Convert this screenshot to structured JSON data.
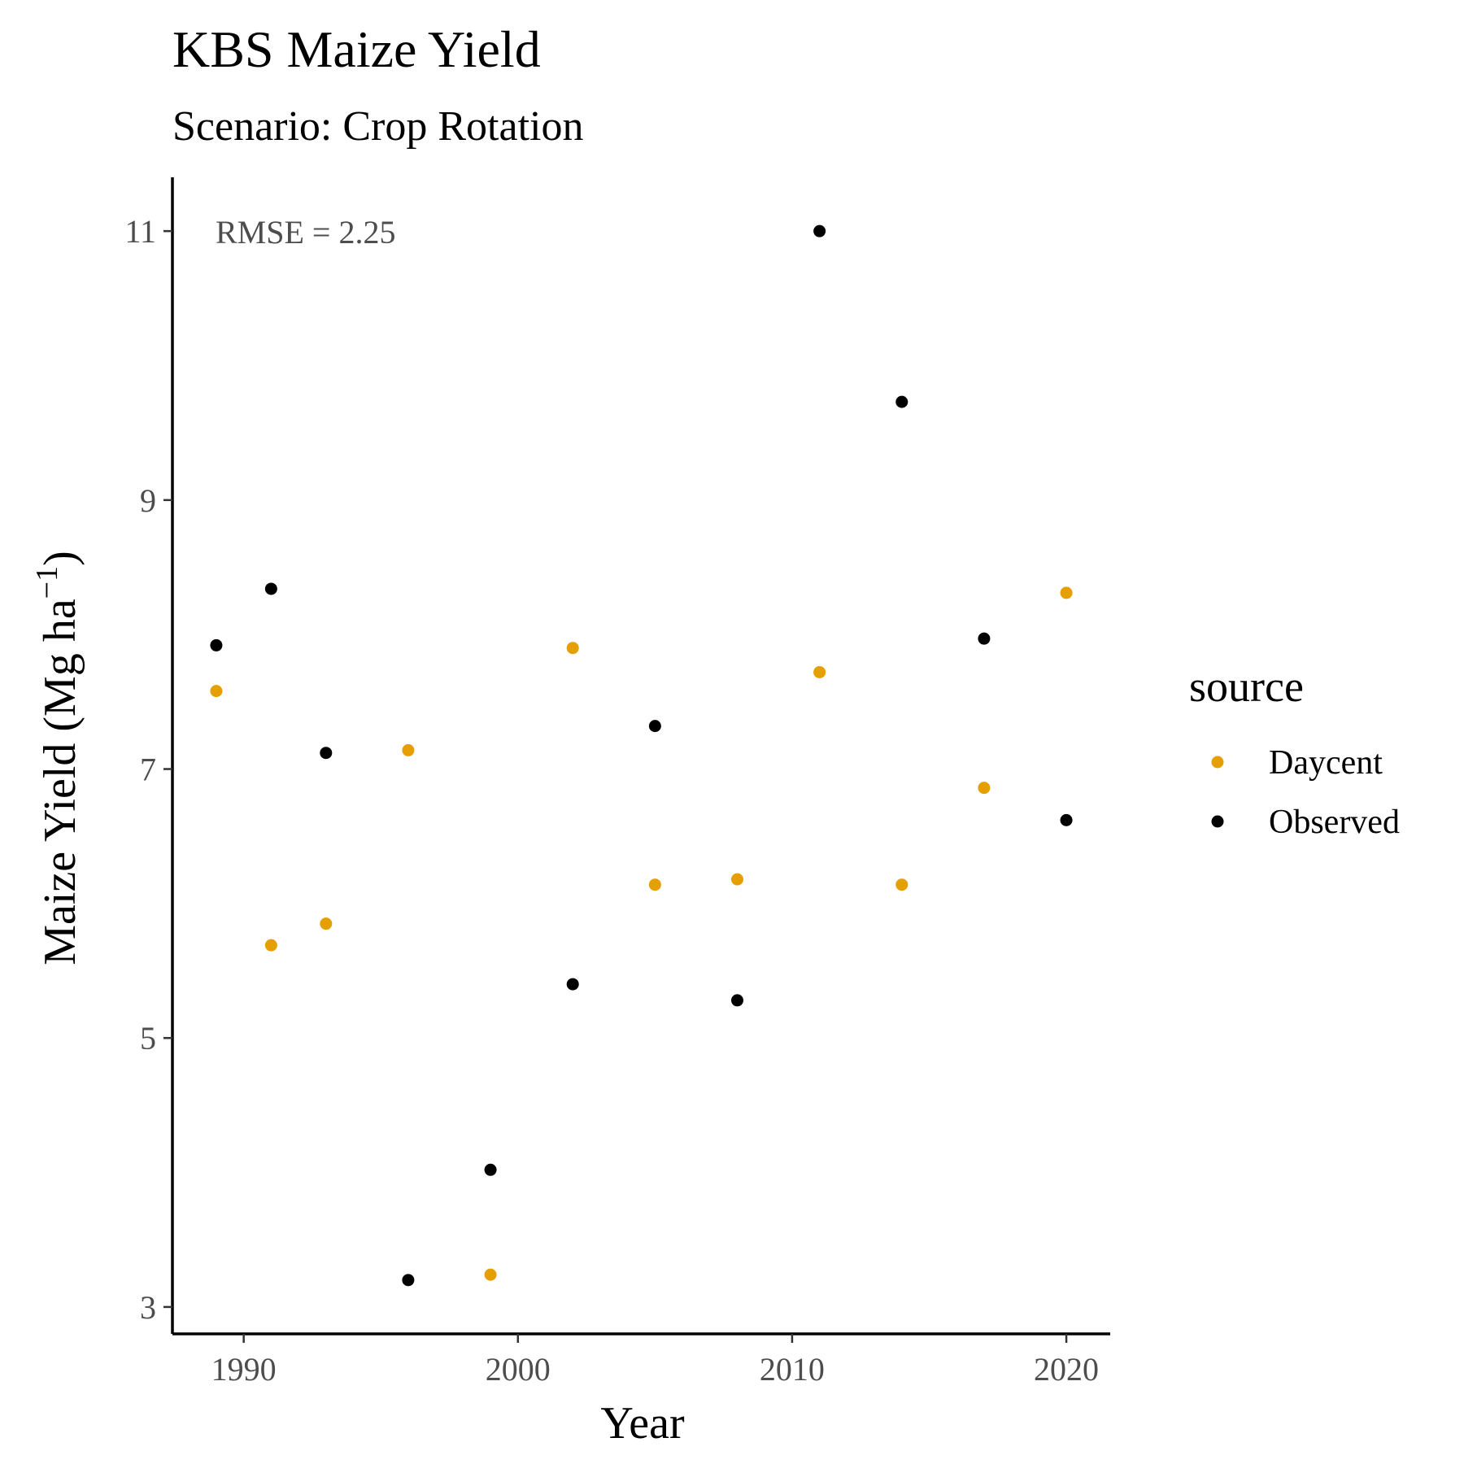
{
  "chart_data": {
    "type": "scatter",
    "title": "KBS Maize Yield",
    "subtitle": "Scenario: Crop Rotation",
    "xlabel": "Year",
    "ylabel": "Maize Yield (Mg ha",
    "ylabel_sup": "−1",
    "ylabel_close": ")",
    "xlim": [
      1987.4,
      2021.6
    ],
    "ylim": [
      2.8,
      11.4
    ],
    "xticks": [
      1990,
      2000,
      2010,
      2020
    ],
    "yticks": [
      3,
      5,
      7,
      9,
      11
    ],
    "annotation": "RMSE = 2.25",
    "grid": false,
    "legend": {
      "title": "source",
      "position": "right"
    },
    "series": [
      {
        "name": "Daycent",
        "color": "#E69F00",
        "x": [
          1989,
          1991,
          1993,
          1996,
          1999,
          2002,
          2005,
          2008,
          2011,
          2014,
          2017,
          2020
        ],
        "y": [
          7.58,
          5.69,
          5.85,
          7.14,
          3.24,
          7.9,
          6.14,
          6.18,
          7.72,
          6.14,
          6.86,
          8.31
        ]
      },
      {
        "name": "Observed",
        "color": "#000000",
        "x": [
          1989,
          1991,
          1993,
          1996,
          1999,
          2002,
          2005,
          2008,
          2011,
          2014,
          2017,
          2020
        ],
        "y": [
          7.92,
          8.34,
          7.12,
          3.2,
          4.02,
          5.4,
          7.32,
          5.28,
          11.0,
          9.73,
          7.97,
          6.62
        ]
      }
    ]
  }
}
